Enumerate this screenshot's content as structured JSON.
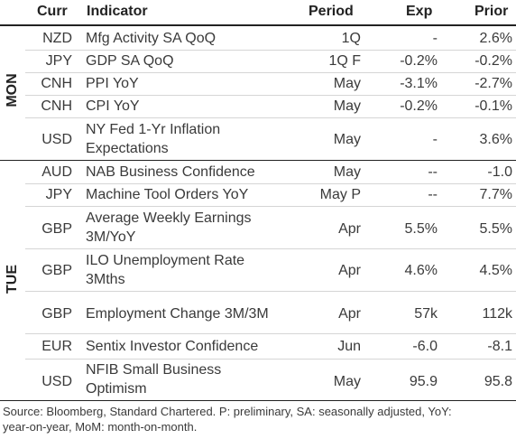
{
  "header": {
    "curr": "Curr",
    "indicator": "Indicator",
    "period": "Period",
    "exp": "Exp",
    "prior": "Prior"
  },
  "days": {
    "mon": "MON",
    "tue": "TUE"
  },
  "rows": [
    {
      "curr": "NZD",
      "indicator": "Mfg Activity SA QoQ",
      "period": "1Q",
      "exp": "-",
      "prior": "2.6%"
    },
    {
      "curr": "JPY",
      "indicator": "GDP SA QoQ",
      "period": "1Q F",
      "exp": "-0.2%",
      "prior": "-0.2%"
    },
    {
      "curr": "CNH",
      "indicator": "PPI YoY",
      "period": "May",
      "exp": "-3.1%",
      "prior": "-2.7%"
    },
    {
      "curr": "CNH",
      "indicator": "CPI YoY",
      "period": "May",
      "exp": "-0.2%",
      "prior": "-0.1%"
    },
    {
      "curr": "USD",
      "indicator_l1": "NY Fed 1-Yr Inflation",
      "indicator_l2": "Expectations",
      "period": "May",
      "exp": "-",
      "prior": "3.6%"
    },
    {
      "curr": "AUD",
      "indicator": "NAB Business Confidence",
      "period": "May",
      "exp": "--",
      "prior": "-1.0"
    },
    {
      "curr": "JPY",
      "indicator": "Machine Tool Orders YoY",
      "period": "May P",
      "exp": "--",
      "prior": "7.7%"
    },
    {
      "curr": "GBP",
      "indicator_l1": "Average Weekly Earnings",
      "indicator_l2": "3M/YoY",
      "period": "Apr",
      "exp": "5.5%",
      "prior": "5.5%"
    },
    {
      "curr": "GBP",
      "indicator_l1": "ILO Unemployment Rate",
      "indicator_l2": "3Mths",
      "period": "Apr",
      "exp": "4.6%",
      "prior": "4.5%"
    },
    {
      "curr": "GBP",
      "indicator": "Employment Change 3M/3M",
      "period": "Apr",
      "exp": "57k",
      "prior": "112k"
    },
    {
      "curr": "EUR",
      "indicator": "Sentix Investor Confidence",
      "period": "Jun",
      "exp": "-6.0",
      "prior": "-8.1"
    },
    {
      "curr": "USD",
      "indicator_l1": "NFIB Small Business",
      "indicator_l2": "Optimism",
      "period": "May",
      "exp": "95.9",
      "prior": "95.8"
    }
  ],
  "footer": {
    "line1": "Source: Bloomberg, Standard Chartered. P: preliminary, SA: seasonally adjusted, YoY:",
    "line2": "year-on-year, MoM: month-on-month."
  }
}
